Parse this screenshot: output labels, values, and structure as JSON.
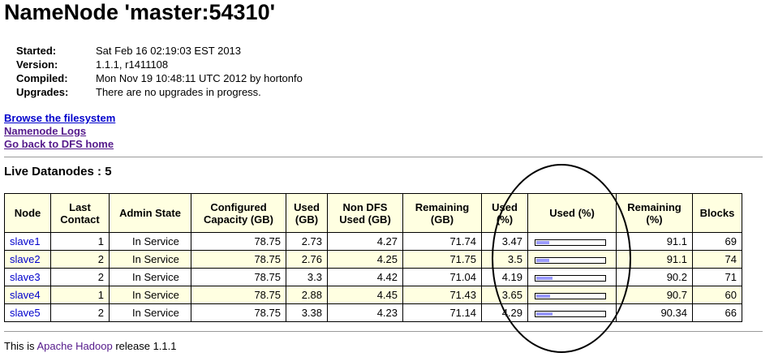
{
  "title": "NameNode 'master:54310'",
  "info": [
    {
      "key": "Started:",
      "value": "Sat Feb 16 02:19:03 EST 2013"
    },
    {
      "key": "Version:",
      "value": "1.1.1, r1411108"
    },
    {
      "key": "Compiled:",
      "value": "Mon Nov 19 10:48:11 UTC 2012 by hortonfo"
    },
    {
      "key": "Upgrades:",
      "value": "There are no upgrades in progress."
    }
  ],
  "links": {
    "browse": "Browse the filesystem",
    "logs": "Namenode Logs",
    "dfs_home": "Go back to DFS home"
  },
  "live_datanodes": "Live Datanodes : 5",
  "table": {
    "headers": [
      "Node",
      "Last Contact",
      "Admin State",
      "Configured Capacity (GB)",
      "Used (GB)",
      "Non DFS Used (GB)",
      "Remaining (GB)",
      "Used (%)",
      "Used (%)",
      "Remaining (%)",
      "Blocks"
    ],
    "rows": [
      {
        "node": "slave1",
        "last_contact": "1",
        "admin_state": "In Service",
        "capacity": "78.75",
        "used": "2.73",
        "non_dfs": "4.27",
        "remaining": "71.74",
        "used_pct": "3.47",
        "used_fraction": 0.0347,
        "remaining_pct": "91.1",
        "blocks": "69"
      },
      {
        "node": "slave2",
        "last_contact": "2",
        "admin_state": "In Service",
        "capacity": "78.75",
        "used": "2.76",
        "non_dfs": "4.25",
        "remaining": "71.75",
        "used_pct": "3.5",
        "used_fraction": 0.035,
        "remaining_pct": "91.1",
        "blocks": "74"
      },
      {
        "node": "slave3",
        "last_contact": "2",
        "admin_state": "In Service",
        "capacity": "78.75",
        "used": "3.3",
        "non_dfs": "4.42",
        "remaining": "71.04",
        "used_pct": "4.19",
        "used_fraction": 0.0419,
        "remaining_pct": "90.2",
        "blocks": "71"
      },
      {
        "node": "slave4",
        "last_contact": "1",
        "admin_state": "In Service",
        "capacity": "78.75",
        "used": "2.88",
        "non_dfs": "4.45",
        "remaining": "71.43",
        "used_pct": "3.65",
        "used_fraction": 0.0365,
        "remaining_pct": "90.7",
        "blocks": "60"
      },
      {
        "node": "slave5",
        "last_contact": "2",
        "admin_state": "In Service",
        "capacity": "78.75",
        "used": "3.38",
        "non_dfs": "4.23",
        "remaining": "71.14",
        "used_pct": "4.29",
        "used_fraction": 0.0429,
        "remaining_pct": "90.34",
        "blocks": "66"
      }
    ]
  },
  "footer": {
    "prefix": "This is ",
    "link": "Apache Hadoop",
    "suffix": " release 1.1.1"
  },
  "colors": {
    "header_bg": "#ffffe1",
    "alt_row_bg": "#ffffe1",
    "bar_fill": "#9999ff",
    "link": "#0000cc",
    "visited_link": "#551a8b"
  }
}
